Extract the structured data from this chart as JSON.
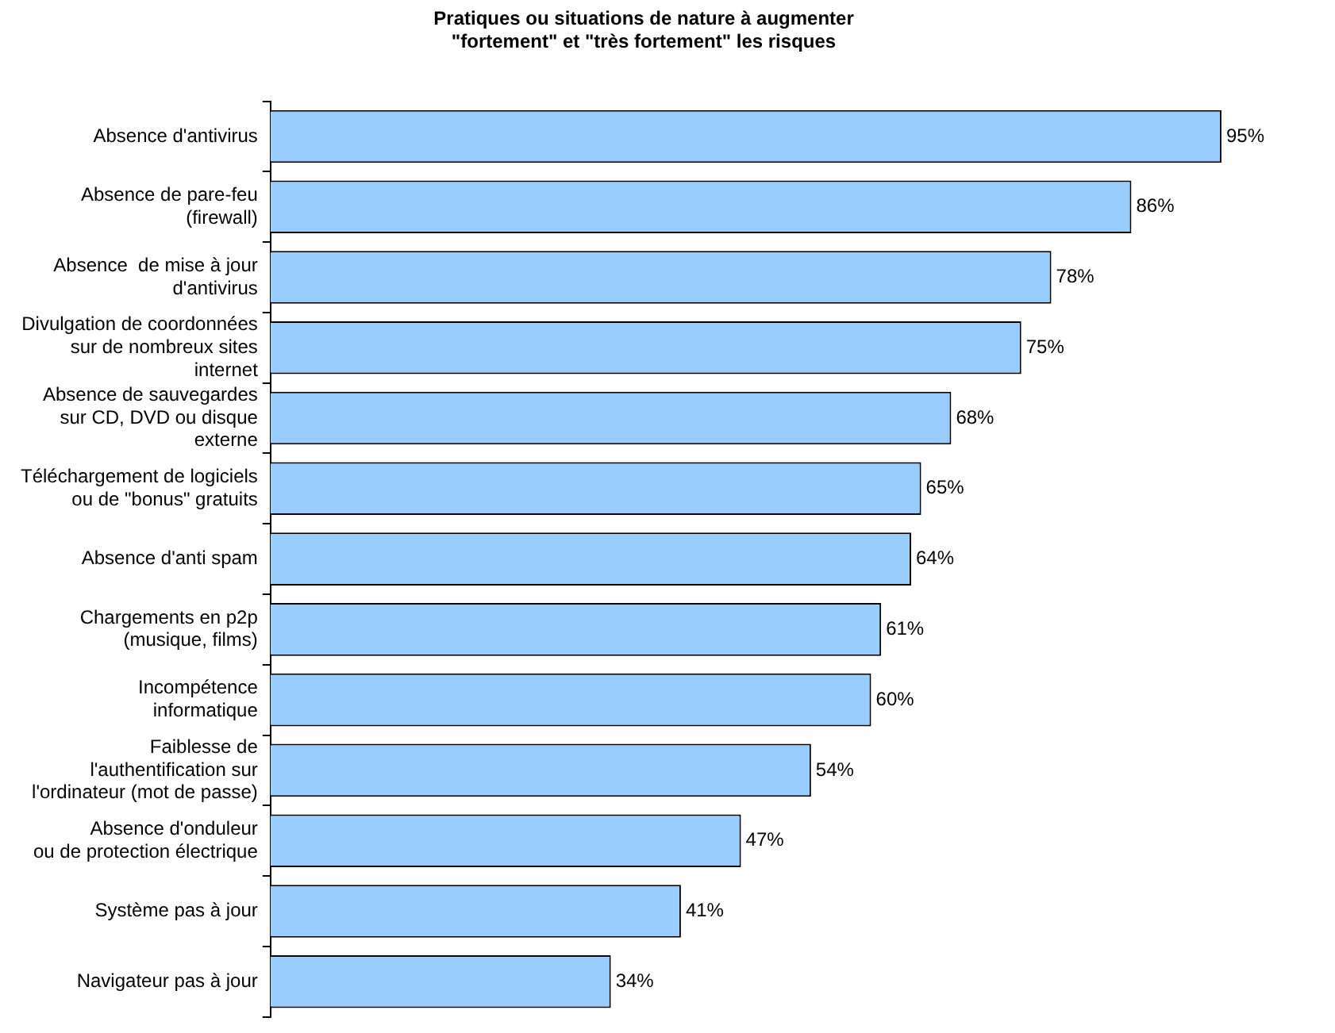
{
  "chart_data": {
    "type": "bar",
    "orientation": "horizontal",
    "tick_labels": "y",
    "title": "Pratiques ou situations de nature à augmenter\n\"fortement\" et \"très fortement\" les risques",
    "categories": [
      "Absence d'antivirus",
      "Absence de pare-feu\n(firewall)",
      "Absence  de mise à jour\nd'antivirus",
      "Divulgation de coordonnées\nsur de nombreux sites\ninternet",
      "Absence de sauvegardes\nsur CD, DVD ou disque\nexterne",
      "Téléchargement de logiciels\nou de \"bonus\" gratuits",
      "Absence d'anti spam",
      "Chargements en p2p\n(musique, films)",
      "Incompétence\ninformatique",
      "Faiblesse de\nl'authentification sur\nl'ordinateur (mot de passe)",
      "Absence d'onduleur\nou de protection électrique",
      "Système pas à jour",
      "Navigateur pas à jour"
    ],
    "values": [
      95,
      86,
      78,
      75,
      68,
      65,
      64,
      61,
      60,
      54,
      47,
      41,
      34
    ],
    "value_labels": [
      "95%",
      "86%",
      "78%",
      "75%",
      "68%",
      "65%",
      "64%",
      "61%",
      "60%",
      "54%",
      "47%",
      "41%",
      "34%"
    ],
    "color": "#99ccff"
  }
}
